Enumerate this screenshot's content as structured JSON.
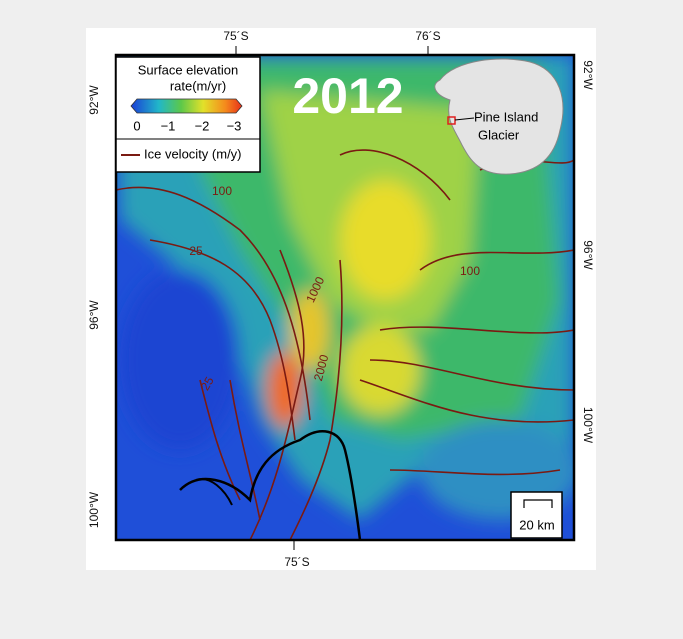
{
  "legend": {
    "title": "Surface elevation",
    "subtitle": "rate(m/yr)",
    "ticks": [
      "0",
      "−1",
      "−2",
      "−3"
    ],
    "line_label": "Ice velocity (m/y)"
  },
  "year": "2012",
  "inset": {
    "label_line1": "Pine Island",
    "label_line2": "Glacier"
  },
  "axes": {
    "top": [
      "75´S",
      "76´S"
    ],
    "bottom": [
      "75´S"
    ],
    "left": [
      "92°W",
      "96°W",
      "100°W"
    ],
    "right": [
      "92°W",
      "96°W",
      "100°W"
    ]
  },
  "contour_labels": [
    "100",
    "25",
    "1000",
    "2000",
    "100",
    "25"
  ],
  "scale_bar": "20 km"
}
